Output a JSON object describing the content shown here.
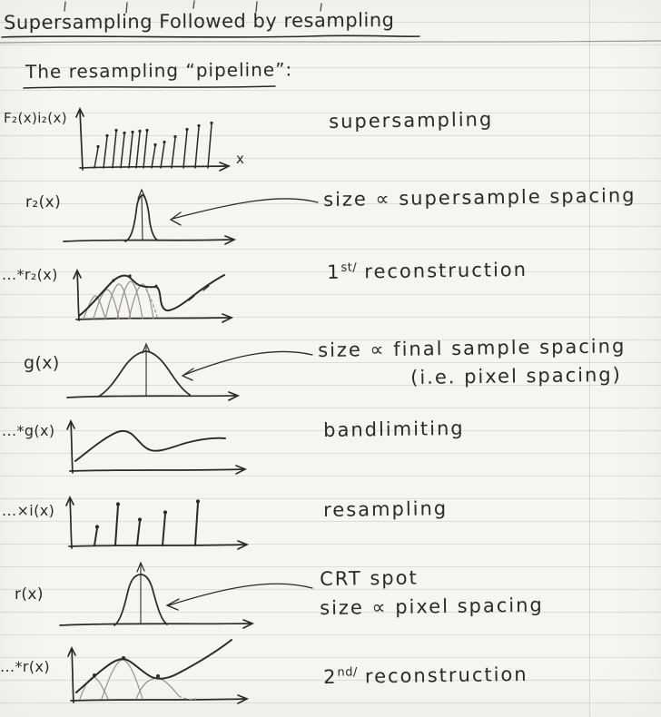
{
  "document": {
    "title": "Supersampling Followed by resampling",
    "subtitle": "The resampling “pipeline”:"
  },
  "pipeline": {
    "rows": [
      {
        "label": "F₂(x)i₂(x)",
        "x_axis_label": "x",
        "caption": "supersampling",
        "impulses": [
          [
            104,
            22
          ],
          [
            114,
            34
          ],
          [
            124,
            40
          ],
          [
            133,
            37
          ],
          [
            142,
            38
          ],
          [
            150,
            39
          ],
          [
            158,
            40
          ],
          [
            167,
            24
          ],
          [
            177,
            27
          ],
          [
            189,
            33
          ],
          [
            202,
            41
          ],
          [
            215,
            45
          ],
          [
            229,
            48
          ]
        ]
      },
      {
        "label": "r₂(x)",
        "caption": "size ∝ supersample spacing"
      },
      {
        "label": "...*r₂(x)",
        "caption_number": "1",
        "caption_ordinal": "st/",
        "caption_text": "reconstruction"
      },
      {
        "label": "g(x)",
        "caption_line1": "size ∝ final sample spacing",
        "caption_line2": "(i.e. pixel spacing)"
      },
      {
        "label": "...*g(x)",
        "caption": "bandlimiting"
      },
      {
        "label": "...×i(x)",
        "caption": "resampling",
        "impulses": [
          [
            104,
            19
          ],
          [
            127,
            44
          ],
          [
            151,
            27
          ],
          [
            179,
            35
          ],
          [
            215,
            47
          ]
        ]
      },
      {
        "label": "r(x)",
        "caption_line1": "CRT spot",
        "caption_line2": "size ∝ pixel spacing"
      },
      {
        "label": "...*r(x)",
        "caption_number": "2",
        "caption_ordinal": "nd/",
        "caption_text": "reconstruction"
      }
    ]
  },
  "ink_color": "#2c2a26",
  "paper_color": "#f6f5f1"
}
